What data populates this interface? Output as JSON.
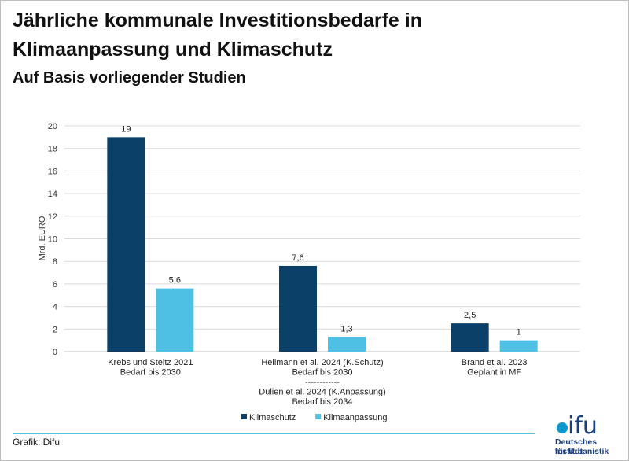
{
  "header": {
    "title": "Jährliche kommunale Investitionsbedarfe in Klimaanpassung und Klimaschutz",
    "subtitle": "Auf Basis vorliegender Studien"
  },
  "footer": {
    "credit": "Grafik: Difu"
  },
  "logo": {
    "wordmark": "ifu",
    "line1": "Deutsches Institut",
    "line2": "für Urbanistik",
    "colors": {
      "dot": "#1196c9",
      "text": "#1b3f7a"
    }
  },
  "chart_data": {
    "type": "bar",
    "ylabel": "Mrd. EURO",
    "ylim": [
      0,
      20
    ],
    "yticks": [
      0,
      2,
      4,
      6,
      8,
      10,
      12,
      14,
      16,
      18,
      20
    ],
    "grid": true,
    "legend_position": "bottom-left",
    "categories": [
      [
        "Krebs und Steitz 2021",
        "Bedarf bis 2030"
      ],
      [
        "Heilmann et al. 2024 (K.Schutz)",
        "Bedarf bis 2030",
        "------------",
        "Dulien et al. 2024 (K.Anpassung)",
        "Bedarf bis 2034"
      ],
      [
        "Brand et al. 2023",
        "Geplant in MF"
      ]
    ],
    "series": [
      {
        "name": "Klimaschutz",
        "color": "#0b4068",
        "values": [
          19,
          7.6,
          2.5
        ],
        "labels": [
          "19",
          "7,6",
          "2,5"
        ]
      },
      {
        "name": "Klimaanpassung",
        "color": "#4dc0e3",
        "values": [
          5.6,
          1.3,
          1
        ],
        "labels": [
          "5,6",
          "1,3",
          "1"
        ]
      }
    ]
  }
}
